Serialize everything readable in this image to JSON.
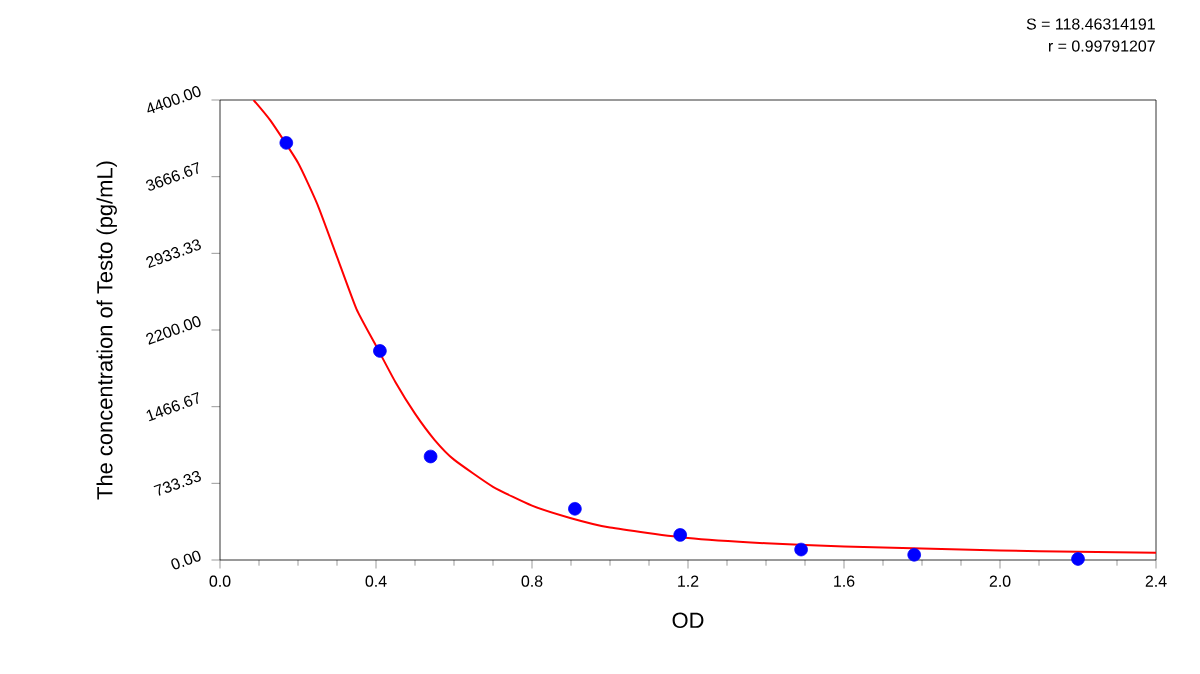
{
  "chart_data": {
    "type": "scatter",
    "xlabel": "OD",
    "ylabel": "The concentration of Testo (pg/mL)",
    "annotations": [
      "S = 118.46314191",
      "r = 0.99791207"
    ],
    "xlim": [
      0,
      2.4
    ],
    "ylim": [
      0,
      4400
    ],
    "xticks": [
      {
        "value": 0,
        "label": "0.0"
      },
      {
        "value": 0.4,
        "label": "0.4"
      },
      {
        "value": 0.8,
        "label": "0.8"
      },
      {
        "value": 1.2,
        "label": "1.2"
      },
      {
        "value": 1.6,
        "label": "1.6"
      },
      {
        "value": 2.0,
        "label": "2.0"
      },
      {
        "value": 2.4,
        "label": "2.4"
      }
    ],
    "yticks": [
      {
        "value": 0,
        "label": "0.00"
      },
      {
        "value": 733.33,
        "label": "733.33"
      },
      {
        "value": 1466.67,
        "label": "1466.67"
      },
      {
        "value": 2200,
        "label": "2200.00"
      },
      {
        "value": 2933.33,
        "label": "2933.33"
      },
      {
        "value": 3666.67,
        "label": "3666.67"
      },
      {
        "value": 4400,
        "label": "4400.00"
      }
    ],
    "grid": false,
    "marker": "circle",
    "series": [
      {
        "color": "#0000ff",
        "x": [
          0.17,
          0.41,
          0.54,
          0.91,
          1.18,
          1.49,
          1.78,
          2.2
        ],
        "values": [
          3990,
          2000,
          990,
          490,
          240,
          100,
          50,
          10
        ]
      },
      {
        "type": "line",
        "color": "#ff0000",
        "marker": "none",
        "x": [
          0.086,
          0.13,
          0.2,
          0.25,
          0.3,
          0.35,
          0.4,
          0.45,
          0.5,
          0.55,
          0.6,
          0.7,
          0.8,
          0.9,
          1.0,
          1.2,
          1.4,
          1.6,
          1.8,
          2.0,
          2.2,
          2.4
        ],
        "values": [
          4400,
          4200,
          3800,
          3400,
          2900,
          2400,
          2050,
          1700,
          1400,
          1150,
          960,
          700,
          520,
          400,
          310,
          210,
          160,
          130,
          110,
          90,
          80,
          70
        ]
      }
    ]
  }
}
